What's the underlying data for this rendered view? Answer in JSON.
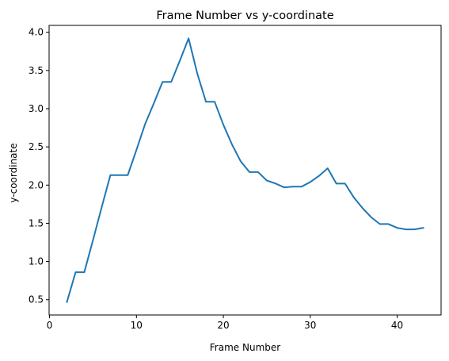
{
  "chart_data": {
    "type": "line",
    "title": "Frame Number vs y-coordinate",
    "xlabel": "Frame Number",
    "ylabel": "y-coordinate",
    "xlim": [
      -0.05,
      45.05
    ],
    "ylim": [
      0.3,
      4.09
    ],
    "xticks": [
      0,
      10,
      20,
      30,
      40
    ],
    "yticks": [
      0.5,
      1.0,
      1.5,
      2.0,
      2.5,
      3.0,
      3.5,
      4.0
    ],
    "xtick_labels": [
      "0",
      "10",
      "20",
      "30",
      "40"
    ],
    "ytick_labels": [
      "0.5",
      "1.0",
      "1.5",
      "2.0",
      "2.5",
      "3.0",
      "3.5",
      "4.0"
    ],
    "grid": false,
    "series": [
      {
        "color": "#1f77b4",
        "x": [
          2,
          3,
          4,
          5,
          6,
          7,
          8,
          9,
          10,
          11,
          12,
          13,
          14,
          15,
          16,
          17,
          18,
          19,
          20,
          21,
          22,
          23,
          24,
          25,
          26,
          27,
          28,
          29,
          30,
          31,
          32,
          33,
          34,
          35,
          36,
          37,
          38,
          39,
          40,
          41,
          42,
          43
        ],
        "y": [
          0.47,
          0.86,
          0.86,
          1.28,
          1.71,
          2.13,
          2.13,
          2.13,
          2.46,
          2.8,
          3.07,
          3.35,
          3.35,
          3.63,
          3.92,
          3.46,
          3.09,
          3.09,
          2.79,
          2.53,
          2.31,
          2.17,
          2.17,
          2.06,
          2.02,
          1.97,
          1.98,
          1.98,
          2.04,
          2.12,
          2.22,
          2.02,
          2.02,
          1.84,
          1.7,
          1.58,
          1.49,
          1.49,
          1.44,
          1.42,
          1.42,
          1.44
        ]
      }
    ]
  }
}
